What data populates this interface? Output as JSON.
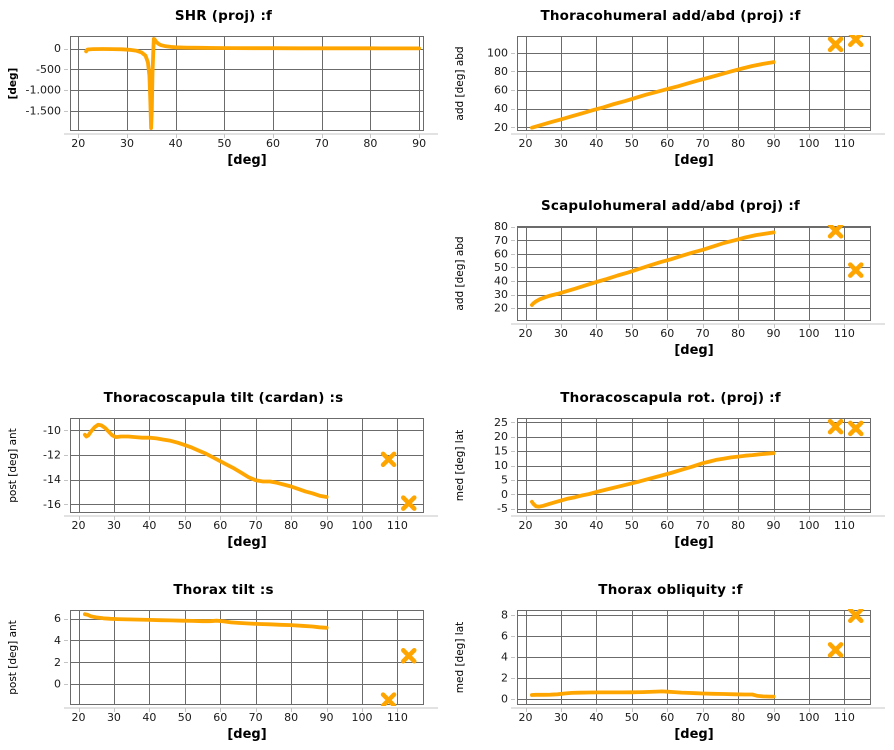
{
  "colors": {
    "series": "#FFA500",
    "grid": "#6B6B6B",
    "axis_line": "#C4C4C4",
    "title": "#000000",
    "tick_label": "#1A1A1A",
    "background": "#FFFFFF"
  },
  "chart_data": [
    {
      "name": "shr-proj",
      "type": "line",
      "title": "SHR (proj) :f",
      "xlabel": "[deg]",
      "ylabel": "[deg]",
      "xlim": [
        18.3,
        91
      ],
      "ylim": [
        -1980,
        300
      ],
      "xticks": [
        20,
        30,
        40,
        50,
        60,
        70,
        80,
        90
      ],
      "yticks": [
        0,
        -500,
        -1000,
        -1500
      ],
      "ytick_labels": [
        "0",
        "-500",
        "-1.000",
        "-1.500"
      ],
      "grid": true,
      "line": [
        [
          21.6,
          -70
        ],
        [
          21.9,
          -25
        ],
        [
          23,
          -15
        ],
        [
          25,
          -13
        ],
        [
          27,
          -14
        ],
        [
          29,
          -20
        ],
        [
          30.5,
          -30
        ],
        [
          32,
          -55
        ],
        [
          33,
          -95
        ],
        [
          33.8,
          -170
        ],
        [
          34.3,
          -330
        ],
        [
          34.6,
          -650
        ],
        [
          34.8,
          -1250
        ],
        [
          34.95,
          -1910
        ],
        [
          35.1,
          -1500
        ],
        [
          35.25,
          -600
        ],
        [
          35.4,
          -60
        ],
        [
          35.5,
          230
        ],
        [
          35.7,
          215
        ],
        [
          36,
          160
        ],
        [
          36.5,
          110
        ],
        [
          37,
          80
        ],
        [
          38,
          52
        ],
        [
          39,
          38
        ],
        [
          40,
          30
        ],
        [
          42,
          22
        ],
        [
          45,
          16
        ],
        [
          48,
          13
        ],
        [
          52,
          10
        ],
        [
          56,
          8
        ],
        [
          60,
          7
        ],
        [
          65,
          6
        ],
        [
          70,
          5
        ],
        [
          75,
          4
        ],
        [
          80,
          4
        ],
        [
          85,
          3
        ],
        [
          90,
          3
        ]
      ],
      "cross_markers": []
    },
    {
      "name": "thoracohumeral-add-abd",
      "type": "line",
      "title": "Thoracohumeral add/abd (proj) :f",
      "xlabel": "[deg]",
      "ylabel": "add [deg] abd",
      "xlim": [
        17.6,
        117.5
      ],
      "ylim": [
        16,
        118
      ],
      "xticks": [
        20,
        30,
        40,
        50,
        60,
        70,
        80,
        90,
        100,
        110
      ],
      "yticks": [
        20,
        40,
        60,
        80,
        100
      ],
      "grid": true,
      "line": [
        [
          21.8,
          19.5
        ],
        [
          24,
          22
        ],
        [
          27,
          25.3
        ],
        [
          30,
          28.5
        ],
        [
          33,
          31.8
        ],
        [
          36,
          35
        ],
        [
          39,
          38.3
        ],
        [
          42,
          41.5
        ],
        [
          45,
          45
        ],
        [
          48,
          48
        ],
        [
          51,
          51.5
        ],
        [
          54,
          55
        ],
        [
          57,
          58
        ],
        [
          60,
          61
        ],
        [
          63,
          64
        ],
        [
          66,
          67.3
        ],
        [
          69,
          70.5
        ],
        [
          72,
          73.5
        ],
        [
          75,
          76.8
        ],
        [
          78,
          80
        ],
        [
          81,
          83
        ],
        [
          84,
          85.8
        ],
        [
          87,
          88
        ],
        [
          90,
          90
        ]
      ],
      "cross_markers": [
        [
          107.5,
          109
        ],
        [
          113.2,
          114.5
        ]
      ]
    },
    {
      "name": "scapulohumeral-add-abd",
      "type": "line",
      "title": "Scapulohumeral add/abd (proj) :f",
      "xlabel": "[deg]",
      "ylabel": "add [deg] abd",
      "xlim": [
        17.6,
        117.5
      ],
      "ylim": [
        10.5,
        80.5
      ],
      "xticks": [
        20,
        30,
        40,
        50,
        60,
        70,
        80,
        90,
        100,
        110
      ],
      "yticks": [
        20,
        30,
        40,
        50,
        60,
        70,
        80
      ],
      "grid": true,
      "line": [
        [
          21.8,
          22.3
        ],
        [
          22.2,
          23.5
        ],
        [
          23,
          25
        ],
        [
          24,
          26.5
        ],
        [
          25.5,
          28
        ],
        [
          27,
          29.2
        ],
        [
          29,
          30.5
        ],
        [
          31,
          32
        ],
        [
          34,
          34.3
        ],
        [
          37,
          36.8
        ],
        [
          40,
          39.2
        ],
        [
          43,
          41.5
        ],
        [
          46,
          44
        ],
        [
          49,
          46.3
        ],
        [
          52,
          48.8
        ],
        [
          55,
          51.3
        ],
        [
          58,
          53.8
        ],
        [
          61,
          56
        ],
        [
          64,
          58.5
        ],
        [
          67,
          60.8
        ],
        [
          70,
          63
        ],
        [
          73,
          65.5
        ],
        [
          76,
          68
        ],
        [
          79,
          70
        ],
        [
          82,
          72
        ],
        [
          85,
          73.8
        ],
        [
          88,
          75
        ],
        [
          90,
          75.8
        ]
      ],
      "cross_markers": [
        [
          107.5,
          77
        ],
        [
          113.2,
          48
        ]
      ]
    },
    {
      "name": "thoracoscapula-tilt",
      "type": "line",
      "title": "Thoracoscapula tilt (cardan) :s",
      "xlabel": "[deg]",
      "ylabel": "post [deg] ant",
      "xlim": [
        17.6,
        117.5
      ],
      "ylim": [
        -16.7,
        -9.0
      ],
      "xticks": [
        20,
        30,
        40,
        50,
        60,
        70,
        80,
        90,
        100,
        110
      ],
      "yticks": [
        -10,
        -12,
        -14,
        -16
      ],
      "grid": true,
      "line": [
        [
          21.8,
          -10.35
        ],
        [
          22.2,
          -10.5
        ],
        [
          22.8,
          -10.4
        ],
        [
          23.5,
          -10.1
        ],
        [
          24.5,
          -9.75
        ],
        [
          25.5,
          -9.55
        ],
        [
          26.5,
          -9.6
        ],
        [
          27.5,
          -9.8
        ],
        [
          28.5,
          -10.1
        ],
        [
          29.5,
          -10.4
        ],
        [
          30.5,
          -10.55
        ],
        [
          32,
          -10.5
        ],
        [
          34,
          -10.5
        ],
        [
          36,
          -10.55
        ],
        [
          38,
          -10.6
        ],
        [
          40,
          -10.6
        ],
        [
          42,
          -10.65
        ],
        [
          44,
          -10.75
        ],
        [
          46,
          -10.85
        ],
        [
          48,
          -11
        ],
        [
          50,
          -11.2
        ],
        [
          52,
          -11.4
        ],
        [
          54,
          -11.65
        ],
        [
          56,
          -11.9
        ],
        [
          58,
          -12.2
        ],
        [
          60,
          -12.5
        ],
        [
          62,
          -12.8
        ],
        [
          64,
          -13.1
        ],
        [
          66,
          -13.45
        ],
        [
          68,
          -13.8
        ],
        [
          70,
          -14.05
        ],
        [
          72,
          -14.15
        ],
        [
          74,
          -14.15
        ],
        [
          76,
          -14.25
        ],
        [
          78,
          -14.4
        ],
        [
          80,
          -14.55
        ],
        [
          82,
          -14.75
        ],
        [
          84,
          -14.95
        ],
        [
          86,
          -15.1
        ],
        [
          88,
          -15.3
        ],
        [
          90,
          -15.4
        ]
      ],
      "cross_markers": [
        [
          107.5,
          -12.35
        ],
        [
          113.2,
          -15.9
        ]
      ]
    },
    {
      "name": "thoracoscapula-rot",
      "type": "line",
      "title": "Thoracoscapula rot. (proj) :f",
      "xlabel": "[deg]",
      "ylabel": "med [deg] lat",
      "xlim": [
        17.6,
        117.5
      ],
      "ylim": [
        -6.5,
        26.5
      ],
      "xticks": [
        20,
        30,
        40,
        50,
        60,
        70,
        80,
        90,
        100,
        110
      ],
      "yticks": [
        -5,
        0,
        5,
        10,
        15,
        20,
        25
      ],
      "grid": true,
      "line": [
        [
          21.8,
          -2.6
        ],
        [
          22.2,
          -3.3
        ],
        [
          23,
          -4.2
        ],
        [
          23.8,
          -4.3
        ],
        [
          25,
          -4
        ],
        [
          26,
          -3.6
        ],
        [
          28,
          -2.9
        ],
        [
          30,
          -2.2
        ],
        [
          32,
          -1.5
        ],
        [
          34,
          -1
        ],
        [
          36,
          -0.4
        ],
        [
          38,
          0.1
        ],
        [
          40,
          0.8
        ],
        [
          43,
          1.7
        ],
        [
          46,
          2.6
        ],
        [
          49,
          3.5
        ],
        [
          52,
          4.4
        ],
        [
          55,
          5.4
        ],
        [
          58,
          6.4
        ],
        [
          61,
          7.4
        ],
        [
          64,
          8.5
        ],
        [
          67,
          9.6
        ],
        [
          70,
          10.8
        ],
        [
          72,
          11.4
        ],
        [
          74,
          12
        ],
        [
          76,
          12.4
        ],
        [
          78,
          12.8
        ],
        [
          80,
          13.1
        ],
        [
          82,
          13.4
        ],
        [
          84,
          13.6
        ],
        [
          86,
          13.9
        ],
        [
          88,
          14.1
        ],
        [
          90,
          14.3
        ]
      ],
      "cross_markers": [
        [
          107.5,
          23.5
        ],
        [
          113.2,
          22.9
        ]
      ]
    },
    {
      "name": "thorax-tilt",
      "type": "line",
      "title": "Thorax tilt :s",
      "xlabel": "[deg]",
      "ylabel": "post [deg] ant",
      "xlim": [
        17.6,
        117.5
      ],
      "ylim": [
        -1.9,
        6.78
      ],
      "xticks": [
        20,
        30,
        40,
        50,
        60,
        70,
        80,
        90,
        100,
        110
      ],
      "yticks": [
        0,
        2,
        4,
        6
      ],
      "grid": true,
      "line": [
        [
          21.8,
          6.4
        ],
        [
          22.5,
          6.35
        ],
        [
          23.5,
          6.2
        ],
        [
          25,
          6.1
        ],
        [
          27,
          6.02
        ],
        [
          29,
          5.98
        ],
        [
          31,
          5.95
        ],
        [
          34,
          5.92
        ],
        [
          37,
          5.9
        ],
        [
          40,
          5.88
        ],
        [
          43,
          5.85
        ],
        [
          46,
          5.83
        ],
        [
          49,
          5.8
        ],
        [
          52,
          5.78
        ],
        [
          55,
          5.76
        ],
        [
          57,
          5.76
        ],
        [
          59,
          5.8
        ],
        [
          61,
          5.74
        ],
        [
          63,
          5.65
        ],
        [
          65,
          5.6
        ],
        [
          68,
          5.55
        ],
        [
          71,
          5.5
        ],
        [
          74,
          5.47
        ],
        [
          77,
          5.43
        ],
        [
          80,
          5.4
        ],
        [
          83,
          5.34
        ],
        [
          86,
          5.27
        ],
        [
          88,
          5.2
        ],
        [
          90,
          5.15
        ]
      ],
      "cross_markers": [
        [
          107.5,
          -1.45
        ],
        [
          113.2,
          2.6
        ]
      ]
    },
    {
      "name": "thorax-obliquity",
      "type": "line",
      "title": "Thorax obliquity :f",
      "xlabel": "[deg]",
      "ylabel": "med [deg] lat",
      "xlim": [
        17.6,
        117.5
      ],
      "ylim": [
        -0.55,
        8.5
      ],
      "xticks": [
        20,
        30,
        40,
        50,
        60,
        70,
        80,
        90,
        100,
        110
      ],
      "yticks": [
        0,
        2,
        4,
        6,
        8
      ],
      "grid": true,
      "line": [
        [
          21.8,
          0.4
        ],
        [
          23,
          0.42
        ],
        [
          25,
          0.42
        ],
        [
          27,
          0.43
        ],
        [
          29,
          0.47
        ],
        [
          31,
          0.55
        ],
        [
          33,
          0.6
        ],
        [
          35,
          0.62
        ],
        [
          38,
          0.64
        ],
        [
          41,
          0.65
        ],
        [
          44,
          0.65
        ],
        [
          47,
          0.65
        ],
        [
          50,
          0.66
        ],
        [
          53,
          0.68
        ],
        [
          55,
          0.7
        ],
        [
          57,
          0.73
        ],
        [
          58.5,
          0.75
        ],
        [
          60,
          0.72
        ],
        [
          62,
          0.68
        ],
        [
          64,
          0.63
        ],
        [
          66,
          0.6
        ],
        [
          68,
          0.57
        ],
        [
          70,
          0.55
        ],
        [
          73,
          0.52
        ],
        [
          76,
          0.5
        ],
        [
          79,
          0.47
        ],
        [
          82,
          0.45
        ],
        [
          84,
          0.45
        ],
        [
          85.5,
          0.32
        ],
        [
          87,
          0.27
        ],
        [
          89,
          0.25
        ],
        [
          90,
          0.25
        ]
      ],
      "cross_markers": [
        [
          107.5,
          4.7
        ],
        [
          113.2,
          8.0
        ]
      ]
    }
  ]
}
